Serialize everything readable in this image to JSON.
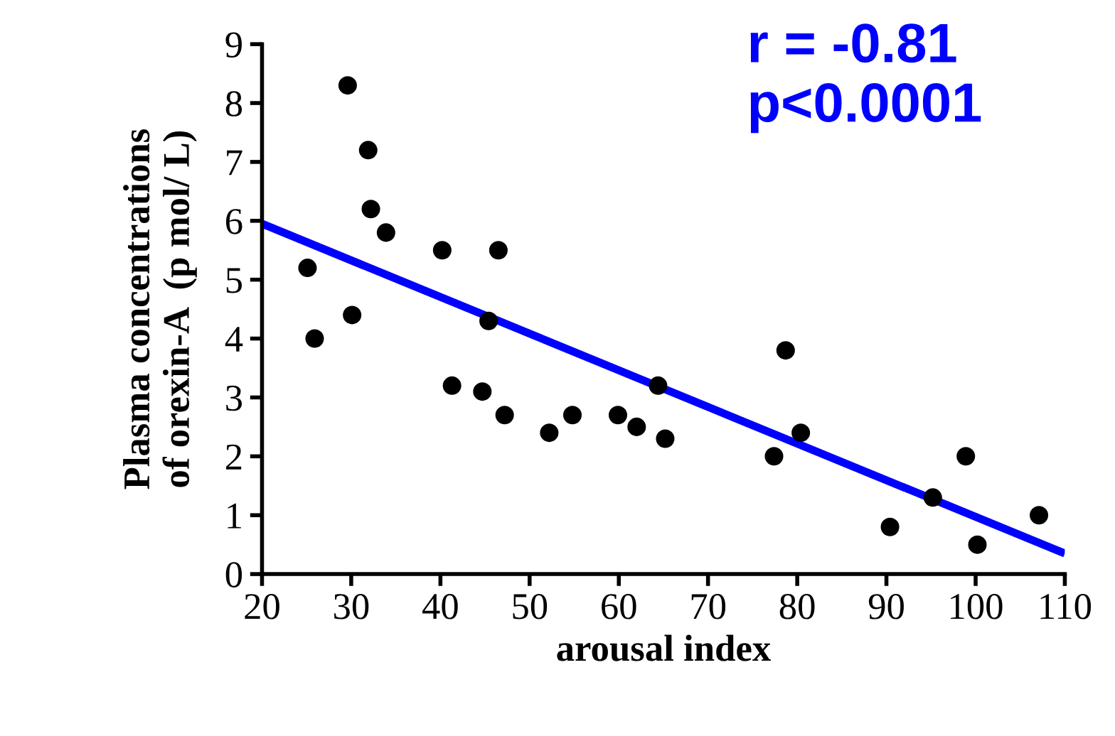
{
  "chart_data": {
    "type": "scatter",
    "xlabel": "arousal index",
    "ylabel": "Plasma concentrations\nof orexin-A  (p mol/ L)",
    "annotations": [
      "r = -0.81\np<0.0001"
    ],
    "series": [
      {
        "color": "#000000",
        "marker": "circle",
        "x": [
          25.1,
          25.9,
          29.6,
          30.1,
          31.9,
          32.2,
          33.9,
          40.2,
          41.3,
          44.7,
          45.4,
          46.5,
          47.2,
          52.2,
          54.8,
          59.9,
          62.0,
          64.4,
          65.2,
          77.4,
          78.7,
          80.4,
          90.4,
          95.2,
          98.9,
          100.2,
          107.1
        ],
        "values": [
          5.2,
          4.0,
          8.3,
          4.4,
          7.2,
          6.2,
          5.8,
          5.5,
          3.2,
          3.1,
          4.3,
          5.5,
          2.7,
          2.4,
          2.7,
          2.7,
          2.5,
          3.2,
          2.3,
          2.0,
          3.8,
          2.4,
          0.8,
          1.3,
          2.0,
          0.5,
          1.0
        ]
      },
      {
        "type": "line",
        "color": "#0000ff",
        "x": [
          20,
          110
        ],
        "values": [
          5.95,
          0.35
        ]
      }
    ],
    "xlim": [
      20,
      110
    ],
    "ylim": [
      0,
      9
    ],
    "xticks": [
      20,
      30,
      40,
      50,
      60,
      70,
      80,
      90,
      100,
      110
    ],
    "yticks": [
      0,
      1,
      2,
      3,
      4,
      5,
      6,
      7,
      8,
      9
    ],
    "grid": false
  }
}
